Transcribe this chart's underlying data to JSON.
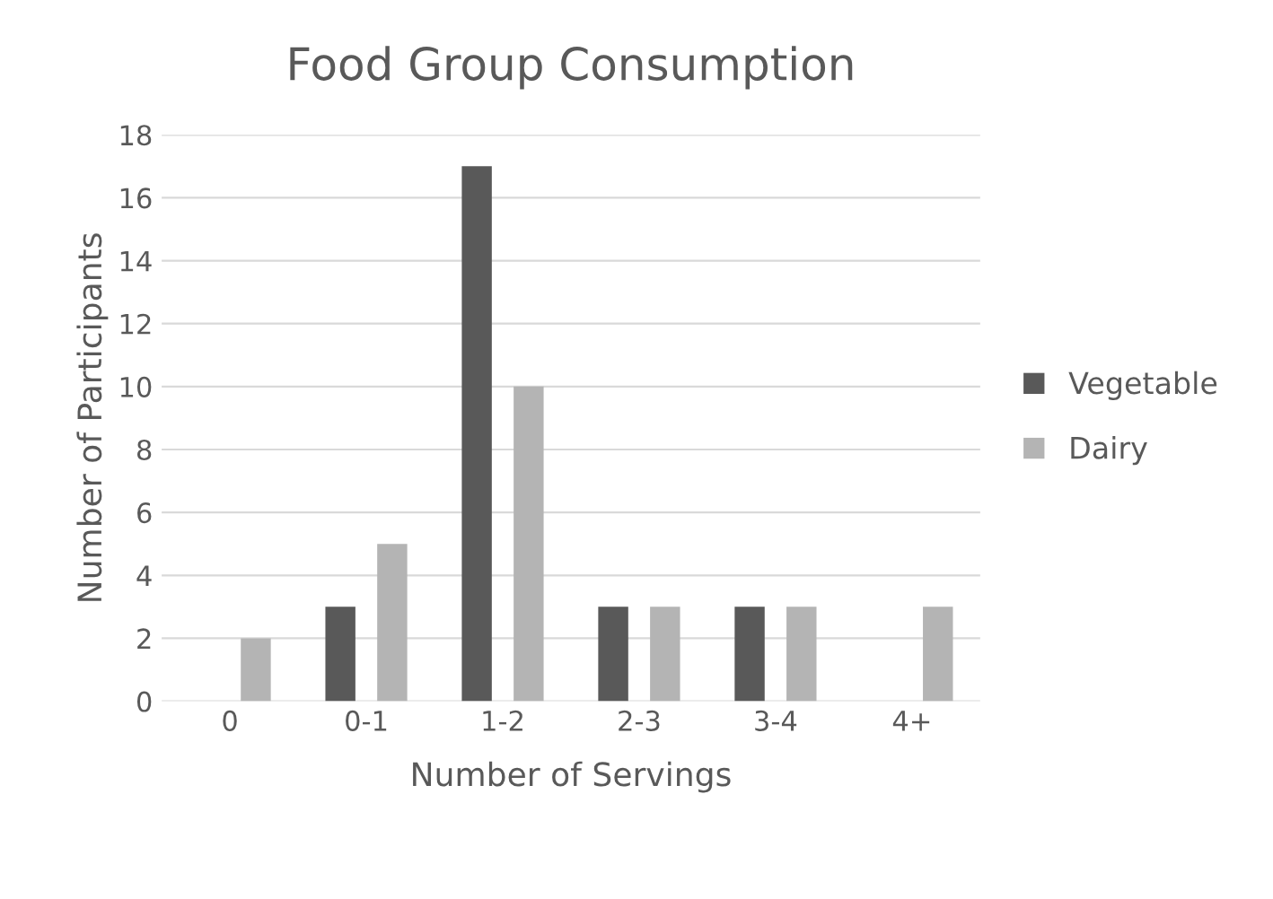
{
  "chart_data": {
    "type": "bar",
    "title": "Food Group Consumption",
    "xlabel": "Number of Servings",
    "ylabel": "Number of Participants",
    "categories": [
      "0",
      "0-1",
      "1-2",
      "2-3",
      "3-4",
      "4+"
    ],
    "series": [
      {
        "name": "Vegetable",
        "color": "#595959",
        "values": [
          0,
          3,
          17,
          3,
          3,
          0
        ]
      },
      {
        "name": "Dairy",
        "color": "#b4b4b4",
        "values": [
          2,
          5,
          10,
          3,
          3,
          3
        ]
      }
    ],
    "ylim": [
      0,
      18
    ],
    "yticks": [
      0,
      2,
      4,
      6,
      8,
      10,
      12,
      14,
      16,
      18
    ],
    "grid": "y",
    "legend": "right"
  }
}
